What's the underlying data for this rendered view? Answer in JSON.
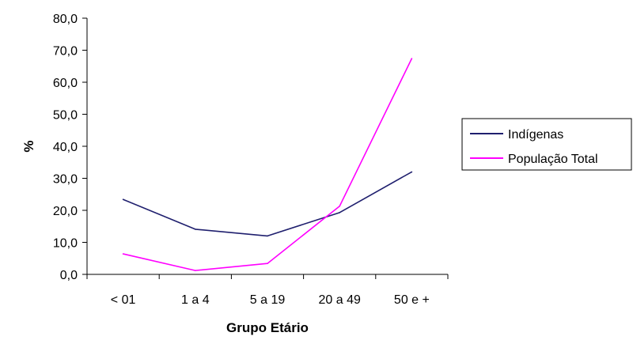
{
  "chart_data": {
    "type": "line",
    "categories": [
      "< 01",
      "1 a 4",
      "5 a 19",
      "20 a 49",
      "50 e +"
    ],
    "series": [
      {
        "name": "Indígenas",
        "color": "#1f1f6e",
        "values": [
          23.4,
          14.1,
          12.0,
          19.3,
          32.0
        ]
      },
      {
        "name": "População Total",
        "color": "#ff00ff",
        "values": [
          6.4,
          1.2,
          3.4,
          21.3,
          67.4
        ]
      }
    ],
    "title": "",
    "xlabel": "Grupo Etário",
    "ylabel": "%",
    "ylim": [
      0,
      80
    ],
    "yticks": [
      "0,0",
      "10,0",
      "20,0",
      "30,0",
      "40,0",
      "50,0",
      "60,0",
      "70,0",
      "80,0"
    ],
    "grid": false,
    "legend_position": "right"
  }
}
